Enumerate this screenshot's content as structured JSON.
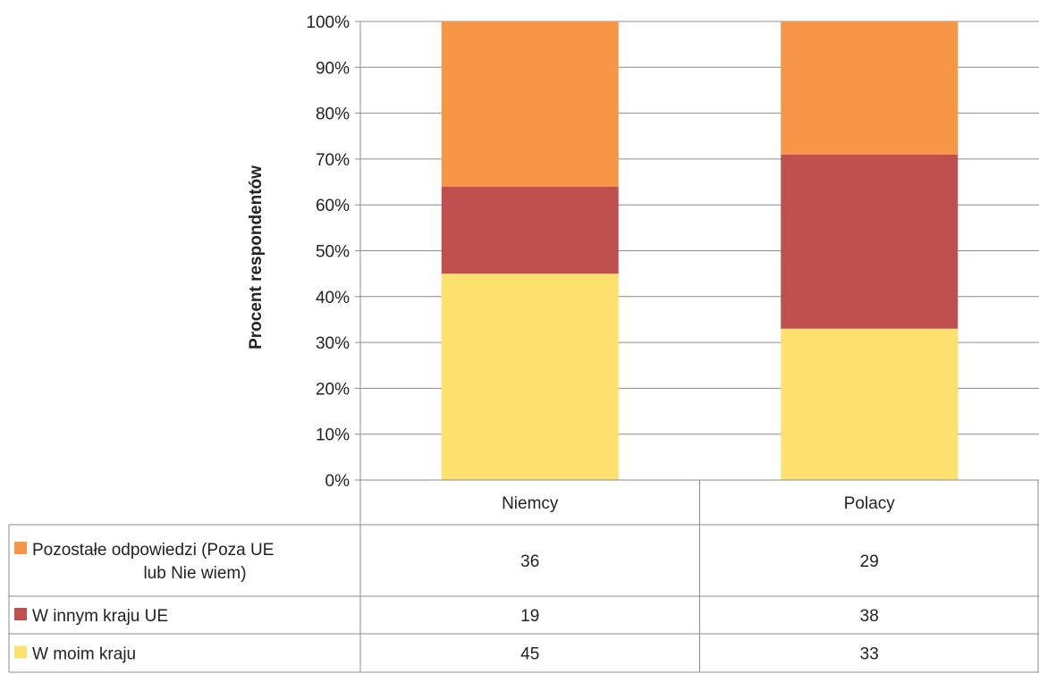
{
  "chart_data": {
    "type": "bar",
    "stacked": true,
    "title": "",
    "xlabel": "",
    "ylabel": "Procent respondentów",
    "ylim": [
      0,
      100
    ],
    "y_ticks": [
      "0%",
      "10%",
      "20%",
      "30%",
      "40%",
      "50%",
      "60%",
      "70%",
      "80%",
      "90%",
      "100%"
    ],
    "grid": true,
    "legend_placement": "data table below chart",
    "categories": [
      "Niemcy",
      "Polacy"
    ],
    "series": [
      {
        "name": "W moim kraju",
        "values": [
          45,
          33
        ],
        "color": "#FDE06E"
      },
      {
        "name": "W innym kraju UE",
        "values": [
          19,
          38
        ],
        "color": "#C0504D"
      },
      {
        "name": "Pozostałe odpowiedzi (Poza UE lub Nie wiem)",
        "values": [
          36,
          29
        ],
        "color": "#F79646"
      }
    ],
    "table_rows": [
      {
        "name_lines": [
          "Pozostałe odpowiedzi (Poza UE",
          "lub Nie wiem)"
        ],
        "values": [
          "36",
          "29"
        ],
        "color": "#F79646"
      },
      {
        "name_lines": [
          "W innym kraju UE"
        ],
        "values": [
          "19",
          "38"
        ],
        "color": "#C0504D"
      },
      {
        "name_lines": [
          "W moim kraju"
        ],
        "values": [
          "45",
          "33"
        ],
        "color": "#FDE06E"
      }
    ]
  }
}
